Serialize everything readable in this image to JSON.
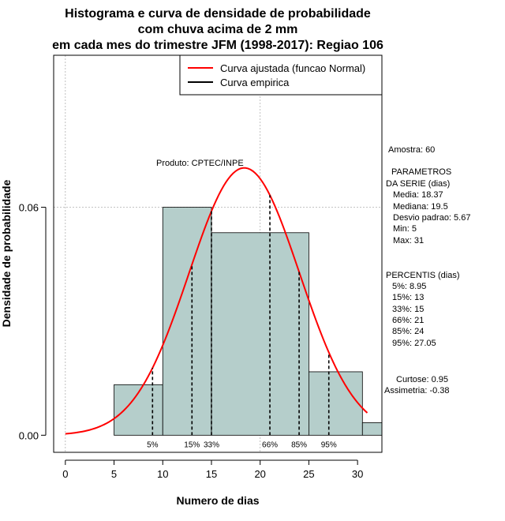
{
  "chart_data": {
    "type": "histogram",
    "title": [
      "Histograma e curva de densidade de probabilidade",
      "com chuva acima de 2 mm",
      "em cada mes do trimestre JFM (1998-2017): Regiao 106"
    ],
    "xlabel": "Numero de dias",
    "ylabel": "Densidade de probabilidade",
    "xlim": [
      -1.2,
      32.5
    ],
    "ylim": [
      -0.0045,
      0.1
    ],
    "x_ticks": [
      0,
      5,
      10,
      15,
      20,
      25,
      30
    ],
    "y_ticks": [
      0.0,
      0.06
    ],
    "y_tick_labels": [
      "0.00",
      "0.06"
    ],
    "grid_x": [
      0,
      20
    ],
    "grid_y": [
      0.06,
      0.1
    ],
    "bins": [
      {
        "x0": 5,
        "x1": 10,
        "density": 0.0133
      },
      {
        "x0": 10,
        "x1": 15,
        "density": 0.06
      },
      {
        "x0": 15,
        "x1": 25,
        "density": 0.0533
      },
      {
        "x0": 25,
        "x1": 30.5,
        "density": 0.0167
      },
      {
        "x0": 30.5,
        "x1": 32.5,
        "density": 0.0033
      }
    ],
    "normal_fit": {
      "mean": 18.37,
      "sd": 5.67,
      "x_from": 0,
      "x_to": 31
    },
    "percentiles": [
      {
        "label": "5%",
        "x": 8.95
      },
      {
        "label": "15%",
        "x": 13
      },
      {
        "label": "33%",
        "x": 15
      },
      {
        "label": "66%",
        "x": 21
      },
      {
        "label": "85%",
        "x": 24
      },
      {
        "label": "95%",
        "x": 27.05
      }
    ],
    "legend": [
      {
        "label": "Curva ajustada (funcao Normal)",
        "color": "#ff0000"
      },
      {
        "label": "Curva empirica",
        "color": "#000000"
      }
    ],
    "legend_position": "top-right",
    "colors": {
      "bar_fill": "#b5cecb",
      "curve": "#ff0000",
      "grid": "#b0b0b0"
    },
    "watermark": "Produto: CPTEC/INPE",
    "stats": {
      "amostra": "Amostra: 60",
      "params_title_1": "PARAMETROS",
      "params_title_2": "DA SERIE (dias)",
      "media": "Media: 18.37",
      "mediana": "Mediana: 19.5",
      "desvio": "Desvio padrao: 5.67",
      "min": "Min: 5",
      "max": "Max: 31",
      "percentis_title": "PERCENTIS (dias)",
      "p5": "5%: 8.95",
      "p15": "15%: 13",
      "p33": "33%: 15",
      "p66": "66%: 21",
      "p85": "85%: 24",
      "p95": "95%: 27.05",
      "curtose": "Curtose: 0.95",
      "assimetria": "Assimetria: -0.38"
    }
  }
}
